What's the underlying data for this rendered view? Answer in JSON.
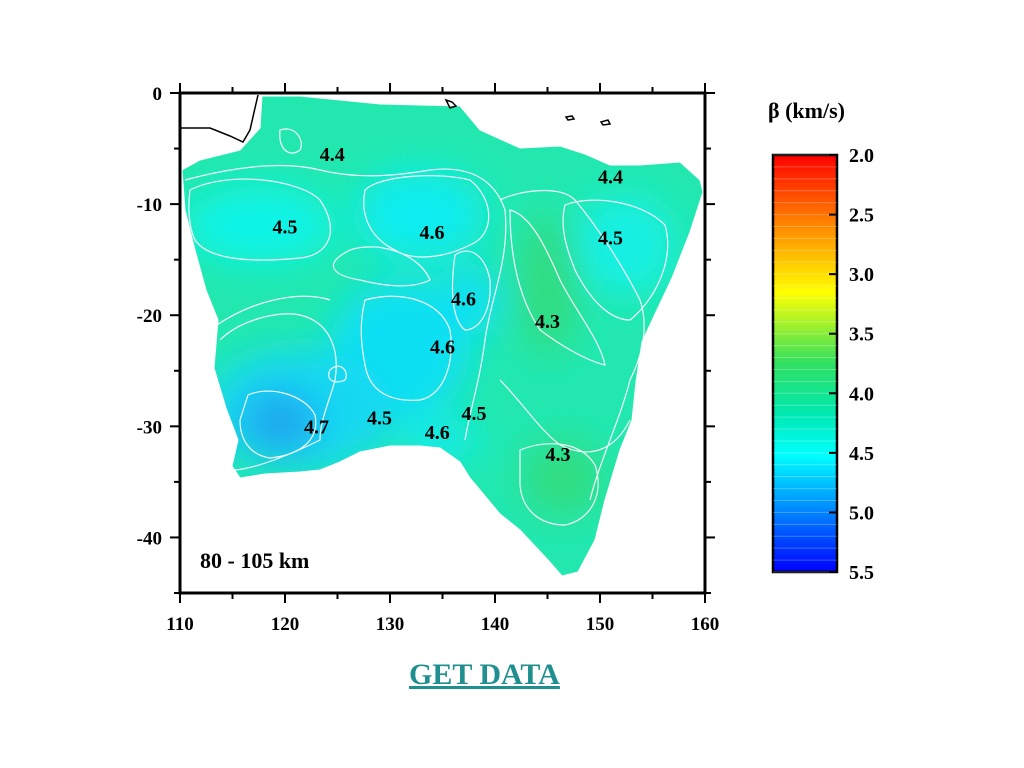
{
  "link": {
    "label": "GET DATA"
  },
  "map": {
    "depth_label": "80 - 105 km",
    "x_ticks": [
      "110",
      "120",
      "130",
      "140",
      "150",
      "160"
    ],
    "y_ticks": [
      "0",
      "-10",
      "-20",
      "-30",
      "-40"
    ],
    "contour_labels": [
      "4.4",
      "4.5",
      "4.6",
      "4.4",
      "4.5",
      "4.6",
      "4.3",
      "4.6",
      "4.7",
      "4.5",
      "4.6",
      "4.5",
      "4.3"
    ]
  },
  "colorbar": {
    "title": "β (km/s)",
    "ticks": [
      "2.0",
      "2.5",
      "3.0",
      "3.5",
      "4.0",
      "4.5",
      "5.0",
      "5.5"
    ],
    "colors": {
      "low": "#ff0000",
      "mid_low": "#ffff00",
      "mid": "#00e060",
      "mid_high": "#00ffff",
      "high": "#0000ff"
    }
  },
  "chart_data": {
    "type": "heatmap",
    "xlim": [
      110,
      160
    ],
    "ylim": [
      -45,
      0
    ],
    "x_ticks": [
      110,
      120,
      130,
      140,
      150,
      160
    ],
    "y_ticks": [
      0,
      -10,
      -20,
      -30,
      -40
    ],
    "value_range": [
      2.0,
      5.5
    ],
    "colorbar_title": "β (km/s)",
    "annotation": "80 - 105 km",
    "contour_labels": [
      {
        "text": "4.4",
        "lon": 124.5,
        "lat": -5.5
      },
      {
        "text": "4.5",
        "lon": 120.0,
        "lat": -12.0
      },
      {
        "text": "4.6",
        "lon": 134.0,
        "lat": -12.5
      },
      {
        "text": "4.4",
        "lon": 151.0,
        "lat": -7.5
      },
      {
        "text": "4.5",
        "lon": 151.0,
        "lat": -13.0
      },
      {
        "text": "4.6",
        "lon": 137.0,
        "lat": -18.5
      },
      {
        "text": "4.3",
        "lon": 145.0,
        "lat": -20.5
      },
      {
        "text": "4.6",
        "lon": 135.0,
        "lat": -22.8
      },
      {
        "text": "4.7",
        "lon": 123.0,
        "lat": -30.0
      },
      {
        "text": "4.5",
        "lon": 129.0,
        "lat": -29.2
      },
      {
        "text": "4.6",
        "lon": 134.5,
        "lat": -30.5
      },
      {
        "text": "4.5",
        "lon": 138.0,
        "lat": -28.8
      },
      {
        "text": "4.3",
        "lon": 146.0,
        "lat": -32.5
      }
    ]
  }
}
